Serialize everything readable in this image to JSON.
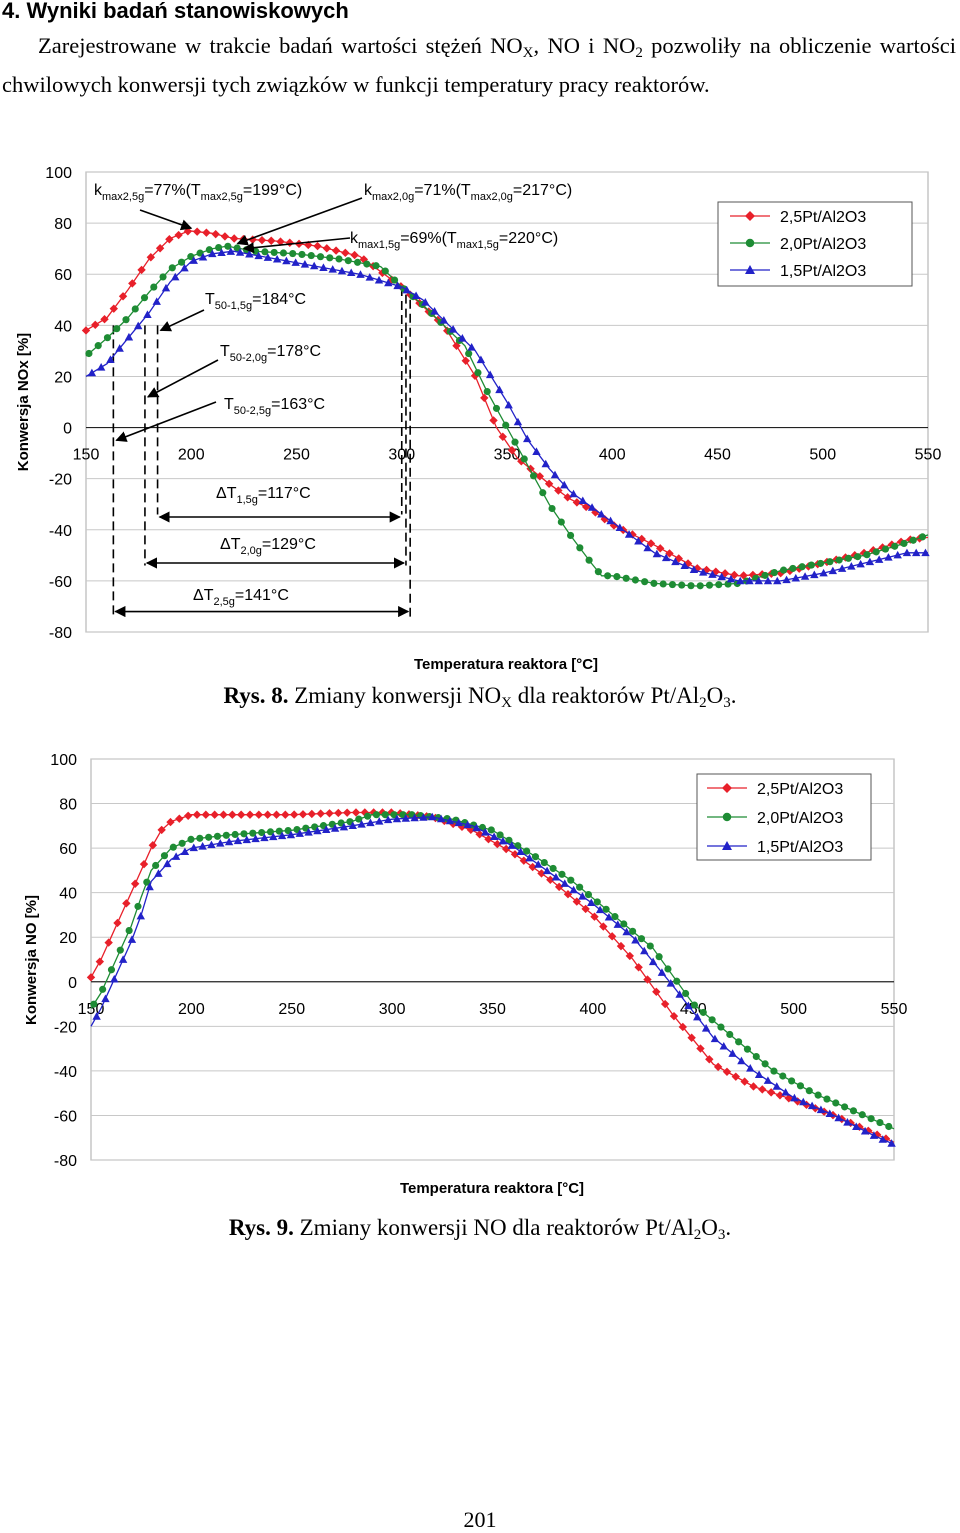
{
  "section": {
    "heading": "4. Wyniki badań stanowiskowych"
  },
  "intro": {
    "p1": "Zarejestrowane w trakcie badań wartości stężeń NO",
    "sub_x": "X",
    "p2": ", NO i NO",
    "sub_2": "2",
    "p3": " pozwoliły na obliczenie wartości chwilowych konwersji tych związków w funkcji temperatury pracy reaktorów."
  },
  "chart_data": [
    {
      "type": "line",
      "id": "fig8",
      "title": "",
      "xlabel": "Temperatura reaktora [°C]",
      "ylabel": "Konwersja NOx [%]",
      "xlim": [
        150,
        550
      ],
      "ylim": [
        -80,
        100
      ],
      "x_ticks": [
        150,
        200,
        250,
        300,
        350,
        400,
        450,
        500,
        550
      ],
      "y_ticks": [
        -80,
        -60,
        -40,
        -20,
        0,
        20,
        40,
        60,
        80,
        100
      ],
      "legend_position": "top-right",
      "series": [
        {
          "name": "2,5Pt/Al2O3",
          "color": "#e8202a",
          "marker": "diamond",
          "points": [
            [
              150,
              38
            ],
            [
              160,
              43
            ],
            [
              170,
              54
            ],
            [
              180,
              66
            ],
            [
              190,
              74
            ],
            [
              199,
              77
            ],
            [
              210,
              76
            ],
            [
              220,
              74
            ],
            [
              240,
              73
            ],
            [
              260,
              71
            ],
            [
              280,
              67
            ],
            [
              300,
              55
            ],
            [
              320,
              40
            ],
            [
              335,
              20
            ],
            [
              345,
              0
            ],
            [
              355,
              -12
            ],
            [
              370,
              -22
            ],
            [
              380,
              -28
            ],
            [
              390,
              -32
            ],
            [
              400,
              -38
            ],
            [
              420,
              -46
            ],
            [
              440,
              -55
            ],
            [
              460,
              -58
            ],
            [
              480,
              -57
            ],
            [
              500,
              -53
            ],
            [
              520,
              -49
            ],
            [
              540,
              -44
            ],
            [
              550,
              -43
            ]
          ]
        },
        {
          "name": "2,0Pt/Al2O3",
          "color": "#1e8c34",
          "marker": "circle",
          "points": [
            [
              150,
              28
            ],
            [
              160,
              35
            ],
            [
              170,
              43
            ],
            [
              180,
              53
            ],
            [
              190,
              62
            ],
            [
              200,
              67
            ],
            [
              210,
              70
            ],
            [
              217,
              71
            ],
            [
              230,
              69
            ],
            [
              250,
              68
            ],
            [
              270,
              66
            ],
            [
              290,
              63
            ],
            [
              300,
              55
            ],
            [
              310,
              48
            ],
            [
              320,
              40
            ],
            [
              330,
              32
            ],
            [
              340,
              15
            ],
            [
              350,
              0
            ],
            [
              360,
              -15
            ],
            [
              370,
              -30
            ],
            [
              380,
              -42
            ],
            [
              390,
              -53
            ],
            [
              395,
              -58
            ],
            [
              400,
              -58
            ],
            [
              420,
              -61
            ],
            [
              440,
              -62
            ],
            [
              460,
              -61
            ],
            [
              480,
              -56
            ],
            [
              500,
              -53
            ],
            [
              520,
              -50
            ],
            [
              540,
              -45
            ],
            [
              550,
              -42
            ]
          ]
        },
        {
          "name": "1,5Pt/Al2O3",
          "color": "#2222c8",
          "marker": "triangle",
          "points": [
            [
              150,
              20
            ],
            [
              160,
              25
            ],
            [
              170,
              35
            ],
            [
              180,
              45
            ],
            [
              190,
              57
            ],
            [
              200,
              65
            ],
            [
              210,
              68
            ],
            [
              220,
              69
            ],
            [
              240,
              66
            ],
            [
              260,
              63
            ],
            [
              280,
              60
            ],
            [
              300,
              55
            ],
            [
              310,
              50
            ],
            [
              320,
              42
            ],
            [
              335,
              30
            ],
            [
              350,
              10
            ],
            [
              360,
              -5
            ],
            [
              370,
              -16
            ],
            [
              380,
              -25
            ],
            [
              400,
              -37
            ],
            [
              420,
              -49
            ],
            [
              440,
              -56
            ],
            [
              460,
              -60
            ],
            [
              480,
              -60
            ],
            [
              500,
              -57
            ],
            [
              520,
              -53
            ],
            [
              540,
              -49
            ],
            [
              550,
              -49
            ]
          ]
        }
      ],
      "annotations": {
        "kmax25": {
          "pre": "k",
          "sub1": "max2,5g",
          "mid": "=77%(T",
          "sub2": "max2,5g",
          "post": "=199°C)"
        },
        "kmax20": {
          "pre": "k",
          "sub1": "max2,0g",
          "mid": "=71%(T",
          "sub2": "max2,0g",
          "post": "=217°C)"
        },
        "kmax15": {
          "pre": "k",
          "sub1": "max1,5g",
          "mid": "=69%(T",
          "sub2": "max1,5g",
          "post": "=220°C)"
        },
        "t50_15": {
          "pre": "T",
          "sub": "50-1,5g",
          "post": "=184°C"
        },
        "t50_20": {
          "pre": "T",
          "sub": "50-2,0g",
          "post": "=178°C"
        },
        "t50_25": {
          "pre": "T",
          "sub": "50-2,5g",
          "post": "=163°C"
        },
        "dt15": {
          "pre": "ΔT",
          "sub": "1,5g",
          "post": "=117°C"
        },
        "dt20": {
          "pre": "ΔT",
          "sub": "2,0g",
          "post": "=129°C"
        },
        "dt25": {
          "pre": "ΔT",
          "sub": "2,5g",
          "post": "=141°C"
        }
      }
    },
    {
      "type": "line",
      "id": "fig9",
      "title": "",
      "xlabel": "Temperatura reaktora [°C]",
      "ylabel": "Konwersja NO [%]",
      "xlim": [
        150,
        550
      ],
      "ylim": [
        -80,
        100
      ],
      "x_ticks": [
        150,
        200,
        250,
        300,
        350,
        400,
        450,
        500,
        550
      ],
      "y_ticks": [
        -80,
        -60,
        -40,
        -20,
        0,
        20,
        40,
        60,
        80,
        100
      ],
      "legend_position": "top-right",
      "series": [
        {
          "name": "2,5Pt/Al2O3",
          "color": "#e8202a",
          "marker": "diamond",
          "points": [
            [
              150,
              2
            ],
            [
              155,
              10
            ],
            [
              160,
              20
            ],
            [
              165,
              30
            ],
            [
              170,
              40
            ],
            [
              175,
              50
            ],
            [
              180,
              60
            ],
            [
              185,
              68
            ],
            [
              190,
              72
            ],
            [
              200,
              75
            ],
            [
              220,
              75
            ],
            [
              250,
              75
            ],
            [
              280,
              76
            ],
            [
              300,
              76
            ],
            [
              320,
              74
            ],
            [
              340,
              68
            ],
            [
              360,
              58
            ],
            [
              380,
              45
            ],
            [
              400,
              30
            ],
            [
              420,
              10
            ],
            [
              440,
              -15
            ],
            [
              460,
              -37
            ],
            [
              480,
              -47
            ],
            [
              500,
              -53
            ],
            [
              520,
              -60
            ],
            [
              540,
              -68
            ],
            [
              550,
              -72
            ]
          ]
        },
        {
          "name": "2,0Pt/Al2O3",
          "color": "#1e8c34",
          "marker": "circle",
          "points": [
            [
              150,
              -12
            ],
            [
              155,
              -5
            ],
            [
              160,
              5
            ],
            [
              165,
              15
            ],
            [
              170,
              25
            ],
            [
              175,
              38
            ],
            [
              180,
              50
            ],
            [
              190,
              60
            ],
            [
              200,
              64
            ],
            [
              220,
              66
            ],
            [
              250,
              68
            ],
            [
              280,
              72
            ],
            [
              290,
              75
            ],
            [
              310,
              75
            ],
            [
              330,
              73
            ],
            [
              350,
              68
            ],
            [
              370,
              57
            ],
            [
              390,
              45
            ],
            [
              410,
              30
            ],
            [
              430,
              15
            ],
            [
              450,
              -10
            ],
            [
              470,
              -25
            ],
            [
              490,
              -40
            ],
            [
              510,
              -50
            ],
            [
              530,
              -58
            ],
            [
              550,
              -66
            ]
          ]
        },
        {
          "name": "1,5Pt/Al2O3",
          "color": "#2222c8",
          "marker": "triangle",
          "points": [
            [
              150,
              -20
            ],
            [
              155,
              -12
            ],
            [
              160,
              -2
            ],
            [
              165,
              8
            ],
            [
              170,
              18
            ],
            [
              175,
              30
            ],
            [
              180,
              45
            ],
            [
              190,
              55
            ],
            [
              200,
              60
            ],
            [
              220,
              63
            ],
            [
              250,
              66
            ],
            [
              280,
              70
            ],
            [
              300,
              73
            ],
            [
              320,
              74
            ],
            [
              340,
              70
            ],
            [
              360,
              61
            ],
            [
              380,
              48
            ],
            [
              400,
              35
            ],
            [
              420,
              20
            ],
            [
              440,
              -2
            ],
            [
              460,
              -25
            ],
            [
              480,
              -40
            ],
            [
              500,
              -52
            ],
            [
              520,
              -60
            ],
            [
              540,
              -69
            ],
            [
              550,
              -73
            ]
          ]
        }
      ]
    }
  ],
  "captions": {
    "fig8": {
      "label": "Rys. 8.",
      "p1": " Zmiany konwersji NO",
      "sub_x": "X",
      "p2": " dla reaktorów Pt/Al",
      "sub_2": "2",
      "p3": "O",
      "sub_3": "3",
      "p4": "."
    },
    "fig9": {
      "label": "Rys. 9.",
      "p1": " Zmiany konwersji NO dla reaktorów Pt/Al",
      "sub_2": "2",
      "p3": "O",
      "sub_3": "3",
      "p4": "."
    }
  },
  "page_number": "201"
}
